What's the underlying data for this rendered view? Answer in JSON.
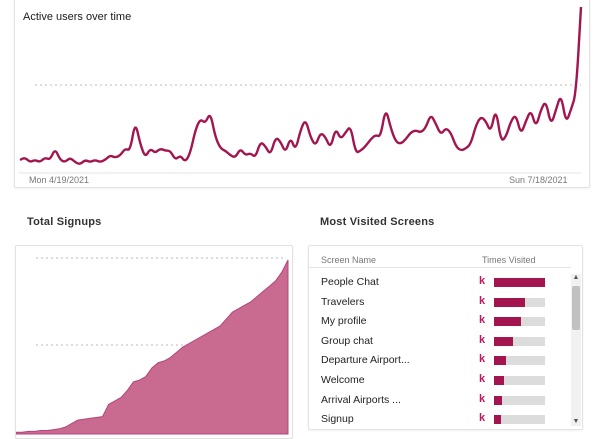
{
  "active_users": {
    "title": "Active users over time",
    "x_start_label": "Mon 4/19/2021",
    "x_end_label": "Sun 7/18/2021",
    "color": "#a3154e",
    "values": [
      4,
      5,
      3,
      4,
      3,
      5,
      4,
      9,
      4,
      3,
      5,
      3,
      2,
      4,
      3,
      4,
      3,
      4,
      6,
      5,
      6,
      9,
      8,
      21,
      11,
      5,
      9,
      7,
      9,
      8,
      8,
      4,
      6,
      3,
      7,
      17,
      22,
      20,
      25,
      14,
      9,
      8,
      6,
      5,
      9,
      6,
      7,
      5,
      12,
      10,
      6,
      14,
      12,
      7,
      14,
      8,
      17,
      22,
      14,
      10,
      16,
      14,
      9,
      18,
      13,
      16,
      19,
      7,
      8,
      10,
      13,
      15,
      14,
      27,
      18,
      12,
      11,
      13,
      16,
      17,
      16,
      18,
      24,
      20,
      15,
      18,
      16,
      10,
      8,
      9,
      11,
      19,
      23,
      21,
      16,
      27,
      12,
      14,
      21,
      24,
      15,
      21,
      26,
      18,
      26,
      30,
      19,
      26,
      33,
      20,
      26,
      33,
      71
    ]
  },
  "total_signups": {
    "title": "Total Signups",
    "color": "#c96a91",
    "values": [
      1,
      1,
      1.5,
      1.5,
      2,
      2,
      2.5,
      3,
      4,
      6,
      8,
      8.5,
      9,
      9.5,
      10,
      17,
      19,
      21,
      25,
      30,
      31,
      33,
      38,
      41,
      42,
      44,
      47,
      50,
      52,
      54,
      56,
      58,
      60,
      62,
      66,
      70,
      72,
      74,
      76,
      79,
      82,
      85,
      88,
      93,
      100
    ]
  },
  "most_visited": {
    "title": "Most Visited Screens",
    "col_name": "Screen Name",
    "col_visits": "Times Visited",
    "k_label": "k",
    "rows": [
      {
        "name": "People Chat",
        "share": 1.0
      },
      {
        "name": "Travelers",
        "share": 0.6
      },
      {
        "name": "My profile",
        "share": 0.53
      },
      {
        "name": "Group chat",
        "share": 0.37
      },
      {
        "name": "Departure Airport...",
        "share": 0.24
      },
      {
        "name": "Welcome",
        "share": 0.2
      },
      {
        "name": "Arrival Airports ...",
        "share": 0.16
      },
      {
        "name": "Signup",
        "share": 0.14
      }
    ]
  }
}
